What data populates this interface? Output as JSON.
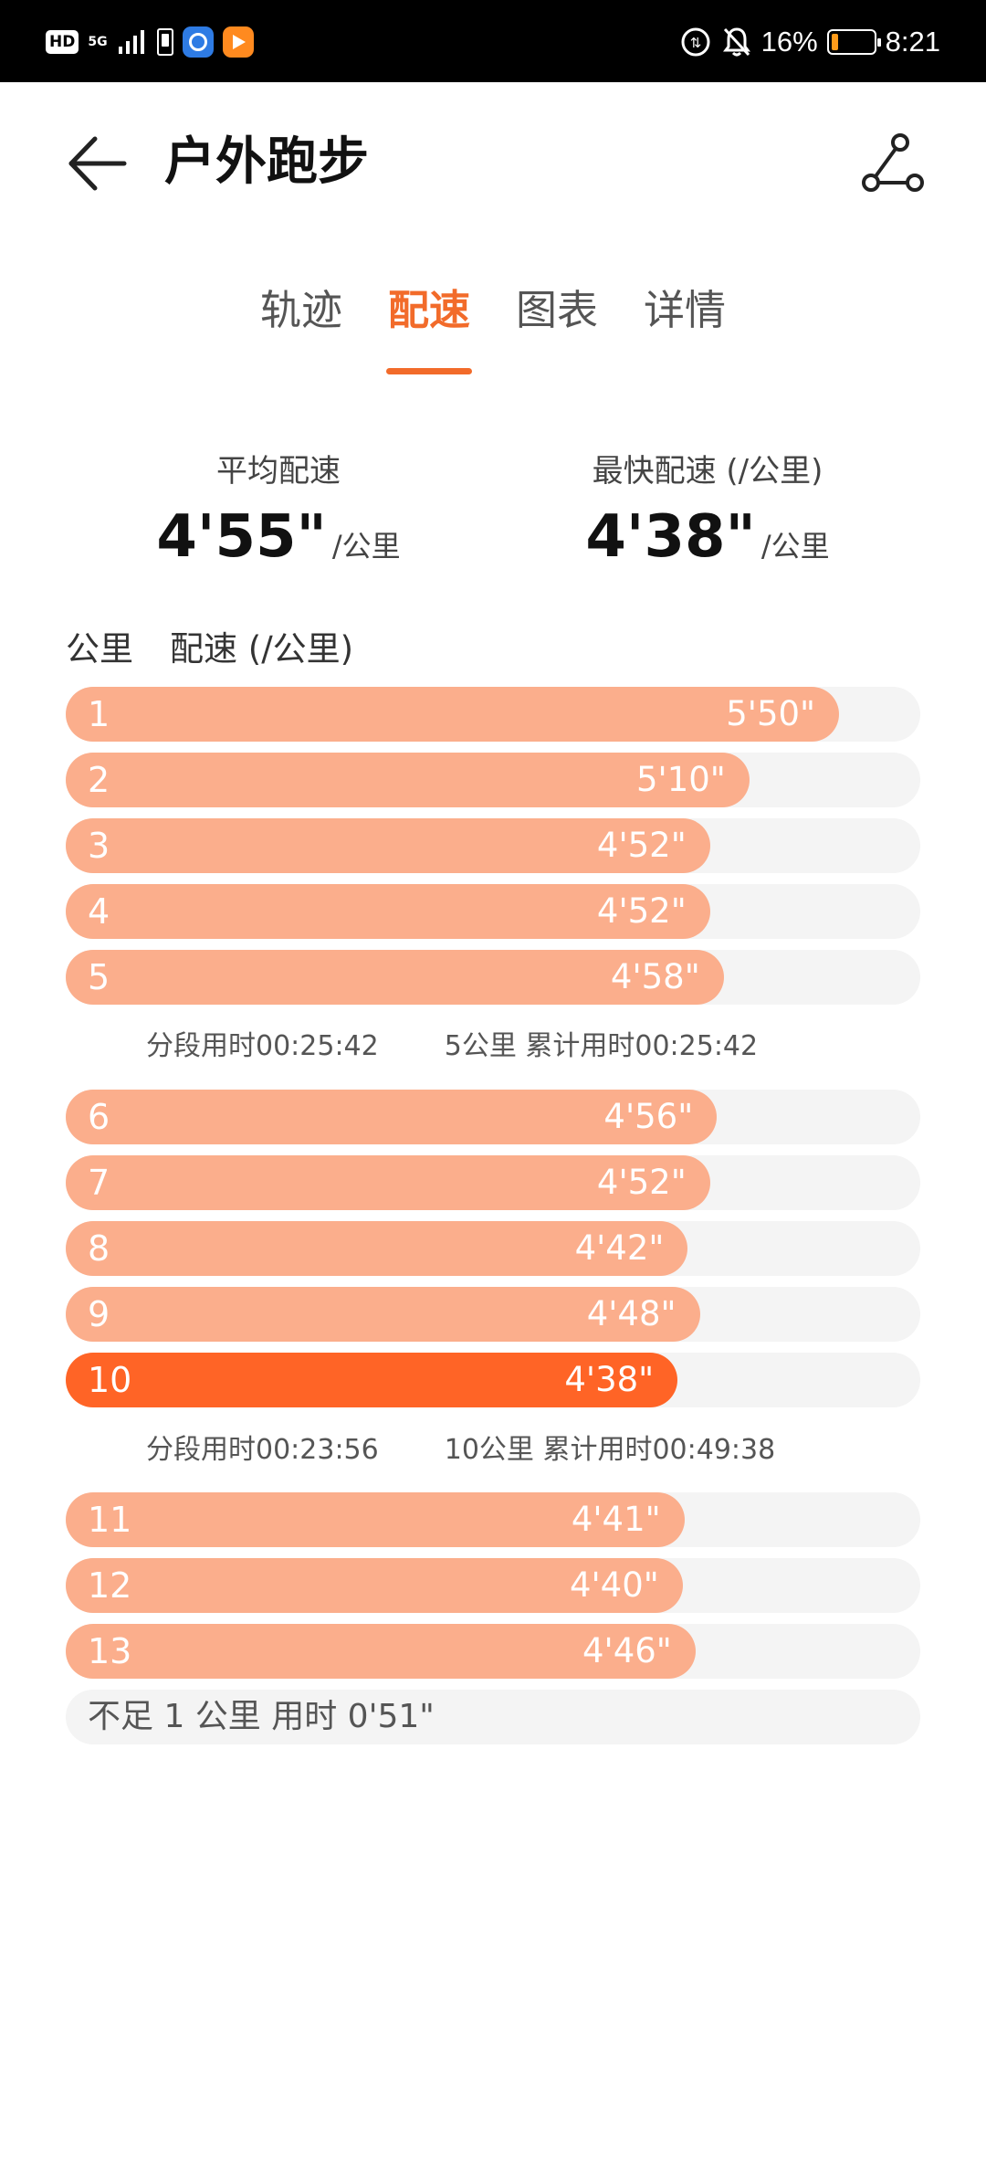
{
  "status_bar": {
    "hd": "HD",
    "network": "5G",
    "battery_percent": "16%",
    "time": "8:21",
    "battery_level": 0.16,
    "battery_color": "#ff9b1a"
  },
  "header": {
    "title": "户外跑步"
  },
  "tabs": [
    {
      "label": "轨迹",
      "active": false
    },
    {
      "label": "配速",
      "active": true
    },
    {
      "label": "图表",
      "active": false
    },
    {
      "label": "详情",
      "active": false
    }
  ],
  "summary": {
    "avg_label": "平均配速",
    "avg_value": "4'55\"",
    "avg_unit": "/公里",
    "fast_label": "最快配速 (/公里)",
    "fast_value": "4'38\"",
    "fast_unit": "/公里"
  },
  "table": {
    "col_km": "公里",
    "col_pace": "配速 (/公里)"
  },
  "colors": {
    "accent": "#f26b2a",
    "bar": "#fbae8c",
    "bar_best": "#ff6426",
    "track": "#f4f4f4"
  },
  "laps": [
    {
      "km": "1",
      "pace": "5'50\"",
      "fill": 0.905
    },
    {
      "km": "2",
      "pace": "5'10\"",
      "fill": 0.8
    },
    {
      "km": "3",
      "pace": "4'52\"",
      "fill": 0.754
    },
    {
      "km": "4",
      "pace": "4'52\"",
      "fill": 0.754
    },
    {
      "km": "5",
      "pace": "4'58\"",
      "fill": 0.77
    },
    {
      "km": "6",
      "pace": "4'56\"",
      "fill": 0.762
    },
    {
      "km": "7",
      "pace": "4'52\"",
      "fill": 0.754
    },
    {
      "km": "8",
      "pace": "4'42\"",
      "fill": 0.728
    },
    {
      "km": "9",
      "pace": "4'48\"",
      "fill": 0.742
    },
    {
      "km": "10",
      "pace": "4'38\"",
      "fill": 0.716,
      "best": true
    },
    {
      "km": "11",
      "pace": "4'41\"",
      "fill": 0.724
    },
    {
      "km": "12",
      "pace": "4'40\"",
      "fill": 0.722
    },
    {
      "km": "13",
      "pace": "4'46\"",
      "fill": 0.737
    }
  ],
  "splits": [
    {
      "segment": "分段用时00:25:42",
      "cumulative": "5公里 累计用时00:25:42"
    },
    {
      "segment": "分段用时00:23:56",
      "cumulative": "10公里 累计用时00:49:38"
    }
  ],
  "remainder": "不足 1 公里 用时 0'51\""
}
